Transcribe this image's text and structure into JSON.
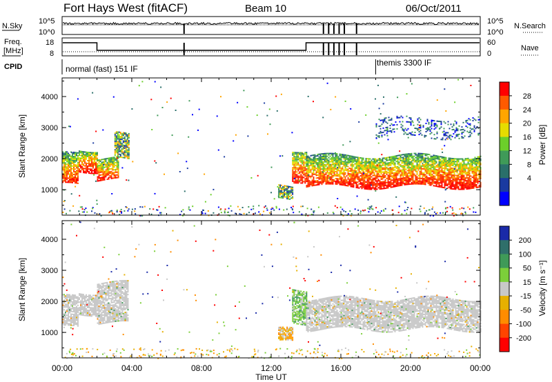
{
  "header": {
    "station": "Fort Hays West (fitACF)",
    "beam": "Beam 10",
    "date": "06/Oct/2011"
  },
  "summary": {
    "nsky_label": "N.Sky",
    "nsearch_label": "N.Search",
    "freq_label_1": "Freq.",
    "freq_label_2": "[MHz]",
    "nave_label": "Nave",
    "cpid_label": "CPID",
    "noise_ticks_left": [
      "10^5",
      "10^0"
    ],
    "noise_ticks_right": [
      "10^5",
      "10^0"
    ],
    "freq_ticks": [
      "18",
      "8"
    ],
    "nave_ticks": [
      "60",
      "0"
    ],
    "cpid_modes": [
      "normal (fast) 151 IF",
      "themis 3300 IF"
    ],
    "mode_change_hour": 18.0
  },
  "chart_data": [
    {
      "type": "heatmap",
      "name": "power",
      "ylabel": "Slant Range [km]",
      "ylim": [
        180,
        4600
      ],
      "yticks": [
        1000,
        2000,
        3000,
        4000
      ],
      "xlim": [
        0,
        24
      ],
      "colorbar": {
        "label": "Power [dB]",
        "ticks": [
          "28",
          "24",
          "20",
          "16",
          "12",
          "8",
          "4"
        ],
        "colors": [
          "#ff0000",
          "#ff5a00",
          "#ffa500",
          "#e6dc00",
          "#6ccf2a",
          "#3f9a58",
          "#2a6f6a",
          "#1a3aa0",
          "#0000ff"
        ]
      },
      "regions": [
        {
          "t0": 0.0,
          "t1": 0.95,
          "r0": 1150,
          "r1": 2150,
          "level": "strong"
        },
        {
          "t0": 0.95,
          "t1": 2.0,
          "r0": 1600,
          "r1": 2300,
          "level": "strong"
        },
        {
          "t0": 2.0,
          "t1": 3.2,
          "r0": 1300,
          "r1": 2000,
          "level": "strong"
        },
        {
          "t0": 3.0,
          "t1": 3.8,
          "r0": 2000,
          "r1": 2800,
          "level": "medium"
        },
        {
          "t0": 12.4,
          "t1": 13.2,
          "r0": 700,
          "r1": 1100,
          "level": "medium"
        },
        {
          "t0": 13.2,
          "t1": 14.0,
          "r0": 1300,
          "r1": 2300,
          "level": "strong"
        },
        {
          "t0": 14.0,
          "t1": 24.0,
          "r0": 1100,
          "r1": 2100,
          "level": "strong"
        },
        {
          "t0": 18.0,
          "t1": 24.0,
          "r0": 2700,
          "r1": 3300,
          "level": "weak"
        }
      ]
    },
    {
      "type": "heatmap",
      "name": "velocity",
      "ylabel": "Slant Range [km]",
      "ylim": [
        180,
        4600
      ],
      "yticks": [
        1000,
        2000,
        3000,
        4000
      ],
      "xlim": [
        0,
        24
      ],
      "xticks": [
        "00:00",
        "04:00",
        "08:00",
        "12:00",
        "16:00",
        "20:00",
        "00:00"
      ],
      "xlabel": "Time UT",
      "colorbar": {
        "label": "Velocity [m s⁻¹]",
        "ticks": [
          "200",
          "100",
          "50",
          "15",
          "-15",
          "-50",
          "-100",
          "-200"
        ],
        "colors": [
          "#1a2aa8",
          "#2f6f6a",
          "#3f9a58",
          "#7ccf3a",
          "#c8c8c8",
          "#e6b000",
          "#ff8c00",
          "#ff4400",
          "#ff0000"
        ]
      },
      "regions": [
        {
          "t0": 0.0,
          "t1": 0.95,
          "r0": 1150,
          "r1": 2150,
          "level": "ground"
        },
        {
          "t0": 0.95,
          "t1": 2.0,
          "r0": 1600,
          "r1": 2300,
          "level": "ground"
        },
        {
          "t0": 2.0,
          "t1": 3.8,
          "r0": 1300,
          "r1": 2600,
          "level": "ground"
        },
        {
          "t0": 12.4,
          "t1": 13.2,
          "r0": 700,
          "r1": 1100,
          "level": "orange"
        },
        {
          "t0": 13.2,
          "t1": 14.0,
          "r0": 1300,
          "r1": 2400,
          "level": "green"
        },
        {
          "t0": 14.0,
          "t1": 24.0,
          "r0": 1100,
          "r1": 2100,
          "level": "ground"
        }
      ]
    }
  ]
}
